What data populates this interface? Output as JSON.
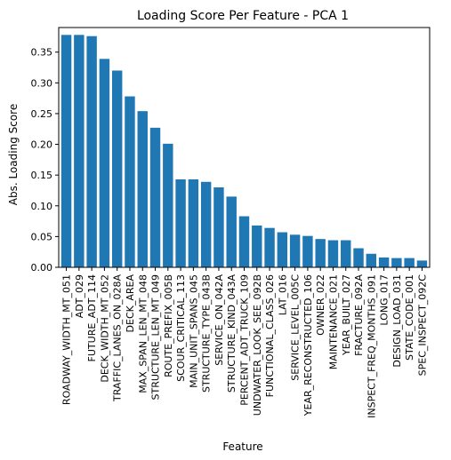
{
  "chart_data": {
    "type": "bar",
    "title": "Loading Score Per Feature - PCA 1",
    "xlabel": "Feature",
    "ylabel": "Abs. Loading Score",
    "ylim": [
      0,
      0.39
    ],
    "yticks": [
      "0.00",
      "0.05",
      "0.10",
      "0.15",
      "0.20",
      "0.25",
      "0.30",
      "0.35"
    ],
    "grid": false,
    "legend": "none",
    "bar_color": "#1f77b4",
    "categories": [
      "ROADWAY_WIDTH_MT_051",
      "ADT_029",
      "FUTURE_ADT_114",
      "DECK_WIDTH_MT_052",
      "TRAFFIC_LANES_ON_028A",
      "DECK_AREA",
      "MAX_SPAN_LEN_MT_048",
      "STRUCTURE_LEN_MT_049",
      "ROUTE_PREFIX_005B",
      "SCOUR_CRITICAL_113",
      "MAIN_UNIT_SPANS_045",
      "STRUCTURE_TYPE_043B",
      "SERVICE_ON_042A",
      "STRUCTURE_KIND_043A",
      "PERCENT_ADT_TRUCK_109",
      "UNDWATER_LOOK_SEE_092B",
      "FUNCTIONAL_CLASS_026",
      "LAT_016",
      "SERVICE_LEVEL_005C",
      "YEAR_RECONSTRUCTED_106",
      "OWNER_022",
      "MAINTENANCE_021",
      "YEAR_BUILT_027",
      "FRACTURE_092A",
      "INSPECT_FREQ_MONTHS_091",
      "LONG_017",
      "DESIGN_LOAD_031",
      "STATE_CODE_001",
      "SPEC_INSPECT_092C"
    ],
    "values": [
      0.378,
      0.378,
      0.376,
      0.339,
      0.32,
      0.278,
      0.254,
      0.227,
      0.201,
      0.143,
      0.143,
      0.139,
      0.13,
      0.115,
      0.083,
      0.068,
      0.064,
      0.057,
      0.053,
      0.051,
      0.046,
      0.044,
      0.044,
      0.031,
      0.022,
      0.016,
      0.015,
      0.015,
      0.011
    ]
  }
}
